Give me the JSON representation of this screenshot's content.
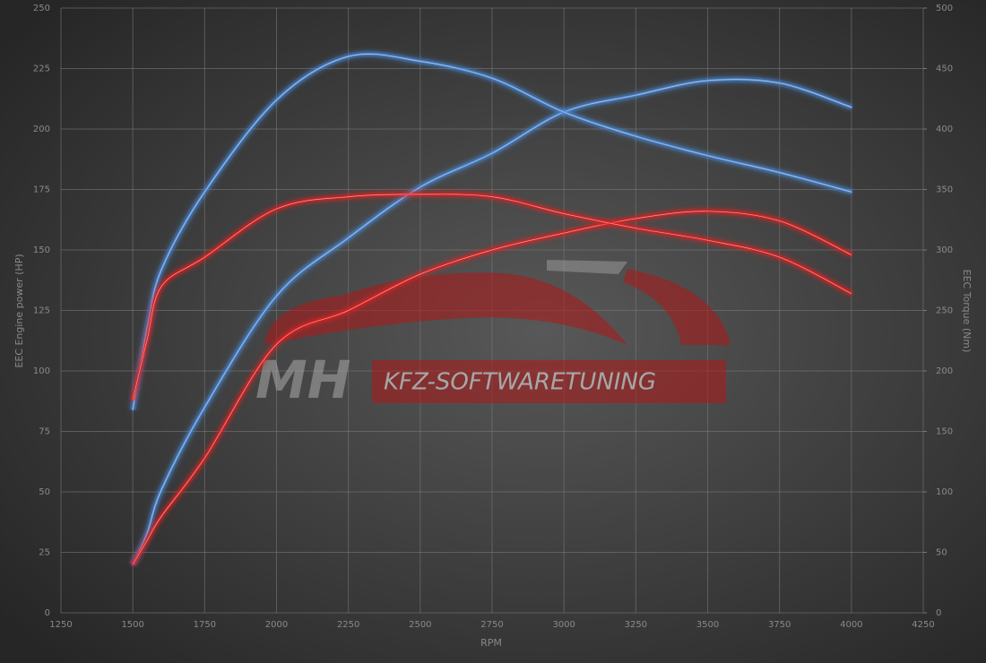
{
  "chart_data": {
    "type": "line",
    "x_label": "RPM",
    "y_label": "EEC Engine power (HP)",
    "y2_label": "EEC Torque (Nm)",
    "watermark": {
      "logo": "MH",
      "text": "KFZ-SOFTWARETUNING"
    },
    "x": [
      1500,
      1550,
      1600,
      1750,
      2000,
      2250,
      2500,
      2750,
      3000,
      3250,
      3500,
      3750,
      4000
    ],
    "series": [
      {
        "color": "#4a8fe0",
        "values": [
          20,
          33,
          51,
          85,
          131,
          155,
          176,
          190,
          207,
          214,
          220,
          219,
          209
        ]
      },
      {
        "color": "#4a8fe0",
        "axis": "y2",
        "values": [
          168,
          236,
          284,
          348,
          424,
          460,
          456,
          442,
          414,
          394,
          378,
          364,
          348
        ]
      },
      {
        "color": "#e02020",
        "values": [
          20,
          30,
          40,
          64,
          111,
          125,
          140,
          150,
          157,
          163,
          166,
          162,
          148
        ]
      },
      {
        "color": "#e02020",
        "axis": "y2",
        "values": [
          176,
          226,
          270,
          294,
          334,
          344,
          346,
          344,
          330,
          318,
          308,
          294,
          264
        ]
      }
    ],
    "xlim": [
      1250,
      4250
    ],
    "xticks": [
      1250,
      1500,
      1750,
      2000,
      2250,
      2500,
      2750,
      3000,
      3250,
      3500,
      3750,
      4000,
      4250
    ],
    "ylim": [
      0,
      250
    ],
    "yticks": [
      0,
      25,
      50,
      75,
      100,
      125,
      150,
      175,
      200,
      225,
      250
    ],
    "y2lim": [
      0,
      500
    ],
    "y2ticks": [
      0,
      50,
      100,
      150,
      200,
      250,
      300,
      350,
      400,
      450,
      500
    ],
    "grid": true
  }
}
